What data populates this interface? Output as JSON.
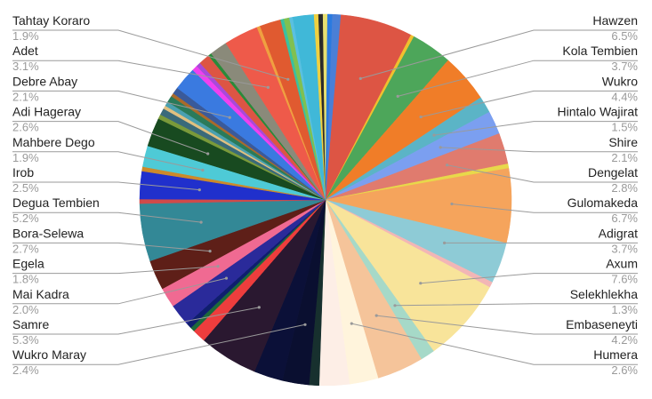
{
  "chart_data": {
    "type": "pie",
    "start_angle_deg": 2,
    "slices": [
      {
        "label": "",
        "value": 0.8,
        "color": "#4a7fd6"
      },
      {
        "label": "Hawzen",
        "value": 6.5,
        "color": "#dd5544"
      },
      {
        "label": "",
        "value": 0.3,
        "color": "#f0c02e"
      },
      {
        "label": "Kola Tembien",
        "value": 3.7,
        "color": "#4da65a"
      },
      {
        "label": "Wukro",
        "value": 4.4,
        "color": "#f07d28"
      },
      {
        "label": "Hintalo Wajirat",
        "value": 1.5,
        "color": "#5bb4c6"
      },
      {
        "label": "Shire",
        "value": 2.1,
        "color": "#7b9ff0"
      },
      {
        "label": "Dengelat",
        "value": 2.8,
        "color": "#e07b6e"
      },
      {
        "label": "",
        "value": 0.4,
        "color": "#e8d84a"
      },
      {
        "label": "Gulomakeda",
        "value": 6.7,
        "color": "#f5a45c"
      },
      {
        "label": "Adigrat",
        "value": 3.7,
        "color": "#8ecbd6"
      },
      {
        "label": "",
        "value": 0.5,
        "color": "#f2b6b6"
      },
      {
        "label": "Axum",
        "value": 7.6,
        "color": "#f8e49a"
      },
      {
        "label": "Selekhlekha",
        "value": 1.3,
        "color": "#a6d9c8"
      },
      {
        "label": "Embaseneyti",
        "value": 4.2,
        "color": "#f5c49a"
      },
      {
        "label": "Humera",
        "value": 2.6,
        "color": "#fff4dc"
      },
      {
        "label": "",
        "value": 2.7,
        "color": "#fdeee6"
      },
      {
        "label": "",
        "value": 0.9,
        "color": "#17302e"
      },
      {
        "label": "Wukro Maray",
        "value": 2.4,
        "color": "#0a0f30"
      },
      {
        "label": "",
        "value": 2.6,
        "color": "#0b1038"
      },
      {
        "label": "Samre",
        "value": 5.3,
        "color": "#2a1830"
      },
      {
        "label": "",
        "value": 1.2,
        "color": "#ee3d3d"
      },
      {
        "label": "",
        "value": 0.4,
        "color": "#1d6a3a"
      },
      {
        "label": "",
        "value": 0.5,
        "color": "#0f1e6e"
      },
      {
        "label": "Mai Kadra",
        "value": 2.0,
        "color": "#2a2a9a"
      },
      {
        "label": "Egela",
        "value": 1.8,
        "color": "#f06a92"
      },
      {
        "label": "Bora-Selewa",
        "value": 2.7,
        "color": "#5e1f18"
      },
      {
        "label": "Degua Tembien",
        "value": 5.2,
        "color": "#338896"
      },
      {
        "label": "",
        "value": 0.4,
        "color": "#d04a4a"
      },
      {
        "label": "Irob",
        "value": 2.5,
        "color": "#2030cc"
      },
      {
        "label": "",
        "value": 0.4,
        "color": "#cc8a2a"
      },
      {
        "label": "Mahbere Dego",
        "value": 1.9,
        "color": "#4ecad6"
      },
      {
        "label": "Adi Hageray",
        "value": 2.6,
        "color": "#184a20"
      },
      {
        "label": "",
        "value": 0.4,
        "color": "#7a9a3a"
      },
      {
        "label": "",
        "value": 0.6,
        "color": "#3a6a7a"
      },
      {
        "label": "",
        "value": 0.3,
        "color": "#e0c080"
      },
      {
        "label": "",
        "value": 0.4,
        "color": "#4aa0b0"
      },
      {
        "label": "",
        "value": 0.6,
        "color": "#2a7a5a"
      },
      {
        "label": "",
        "value": 0.3,
        "color": "#aa6a2a"
      },
      {
        "label": "",
        "value": 0.6,
        "color": "#3a5a9a"
      },
      {
        "label": "Debre Abay",
        "value": 2.1,
        "color": "#3a7ae0"
      },
      {
        "label": "",
        "value": 0.5,
        "color": "#f040f0"
      },
      {
        "label": "",
        "value": 0.4,
        "color": "#a84ad8"
      },
      {
        "label": "",
        "value": 1.0,
        "color": "#dd5544"
      },
      {
        "label": "",
        "value": 0.3,
        "color": "#2a8a3a"
      },
      {
        "label": "",
        "value": 1.6,
        "color": "#8a8a7a"
      },
      {
        "label": "Adet",
        "value": 3.1,
        "color": "#ee5a4a"
      },
      {
        "label": "",
        "value": 0.3,
        "color": "#f0a040"
      },
      {
        "label": "Tahtay Koraro",
        "value": 1.9,
        "color": "#e05a30"
      },
      {
        "label": "",
        "value": 0.3,
        "color": "#3ac0a0"
      },
      {
        "label": "",
        "value": 0.5,
        "color": "#80c050"
      },
      {
        "label": "",
        "value": 0.3,
        "color": "#5ac0e0"
      },
      {
        "label": "",
        "value": 1.9,
        "color": "#40b8d8"
      },
      {
        "label": "",
        "value": 0.4,
        "color": "#f0d040"
      },
      {
        "label": "",
        "value": 0.4,
        "color": "#2a2a2a"
      },
      {
        "label": "",
        "value": 0.4,
        "color": "#e8e070"
      },
      {
        "label": "",
        "value": 0.4,
        "color": "#2a7ae0"
      }
    ],
    "labels": [
      {
        "name": "Hawzen",
        "pct": "6.5%",
        "side": "right"
      },
      {
        "name": "Kola Tembien",
        "pct": "3.7%",
        "side": "right"
      },
      {
        "name": "Wukro",
        "pct": "4.4%",
        "side": "right"
      },
      {
        "name": "Hintalo Wajirat",
        "pct": "1.5%",
        "side": "right"
      },
      {
        "name": "Shire",
        "pct": "2.1%",
        "side": "right"
      },
      {
        "name": "Dengelat",
        "pct": "2.8%",
        "side": "right"
      },
      {
        "name": "Gulomakeda",
        "pct": "6.7%",
        "side": "right"
      },
      {
        "name": "Adigrat",
        "pct": "3.7%",
        "side": "right"
      },
      {
        "name": "Axum",
        "pct": "7.6%",
        "side": "right"
      },
      {
        "name": "Selekhlekha",
        "pct": "1.3%",
        "side": "right"
      },
      {
        "name": "Embaseneyti",
        "pct": "4.2%",
        "side": "right"
      },
      {
        "name": "Humera",
        "pct": "2.6%",
        "side": "right"
      },
      {
        "name": "Tahtay Koraro",
        "pct": "1.9%",
        "side": "left"
      },
      {
        "name": "Adet",
        "pct": "3.1%",
        "side": "left"
      },
      {
        "name": "Debre Abay",
        "pct": "2.1%",
        "side": "left"
      },
      {
        "name": "Adi Hageray",
        "pct": "2.6%",
        "side": "left"
      },
      {
        "name": "Mahbere Dego",
        "pct": "1.9%",
        "side": "left"
      },
      {
        "name": "Irob",
        "pct": "2.5%",
        "side": "left"
      },
      {
        "name": "Degua Tembien",
        "pct": "5.2%",
        "side": "left"
      },
      {
        "name": "Bora-Selewa",
        "pct": "2.7%",
        "side": "left"
      },
      {
        "name": "Egela",
        "pct": "1.8%",
        "side": "left"
      },
      {
        "name": "Mai Kadra",
        "pct": "2.0%",
        "side": "left"
      },
      {
        "name": "Samre",
        "pct": "5.3%",
        "side": "left"
      },
      {
        "name": "Wukro Maray",
        "pct": "2.4%",
        "side": "left"
      }
    ],
    "leader_line_color": "#9a9a9a",
    "legend": "none"
  }
}
